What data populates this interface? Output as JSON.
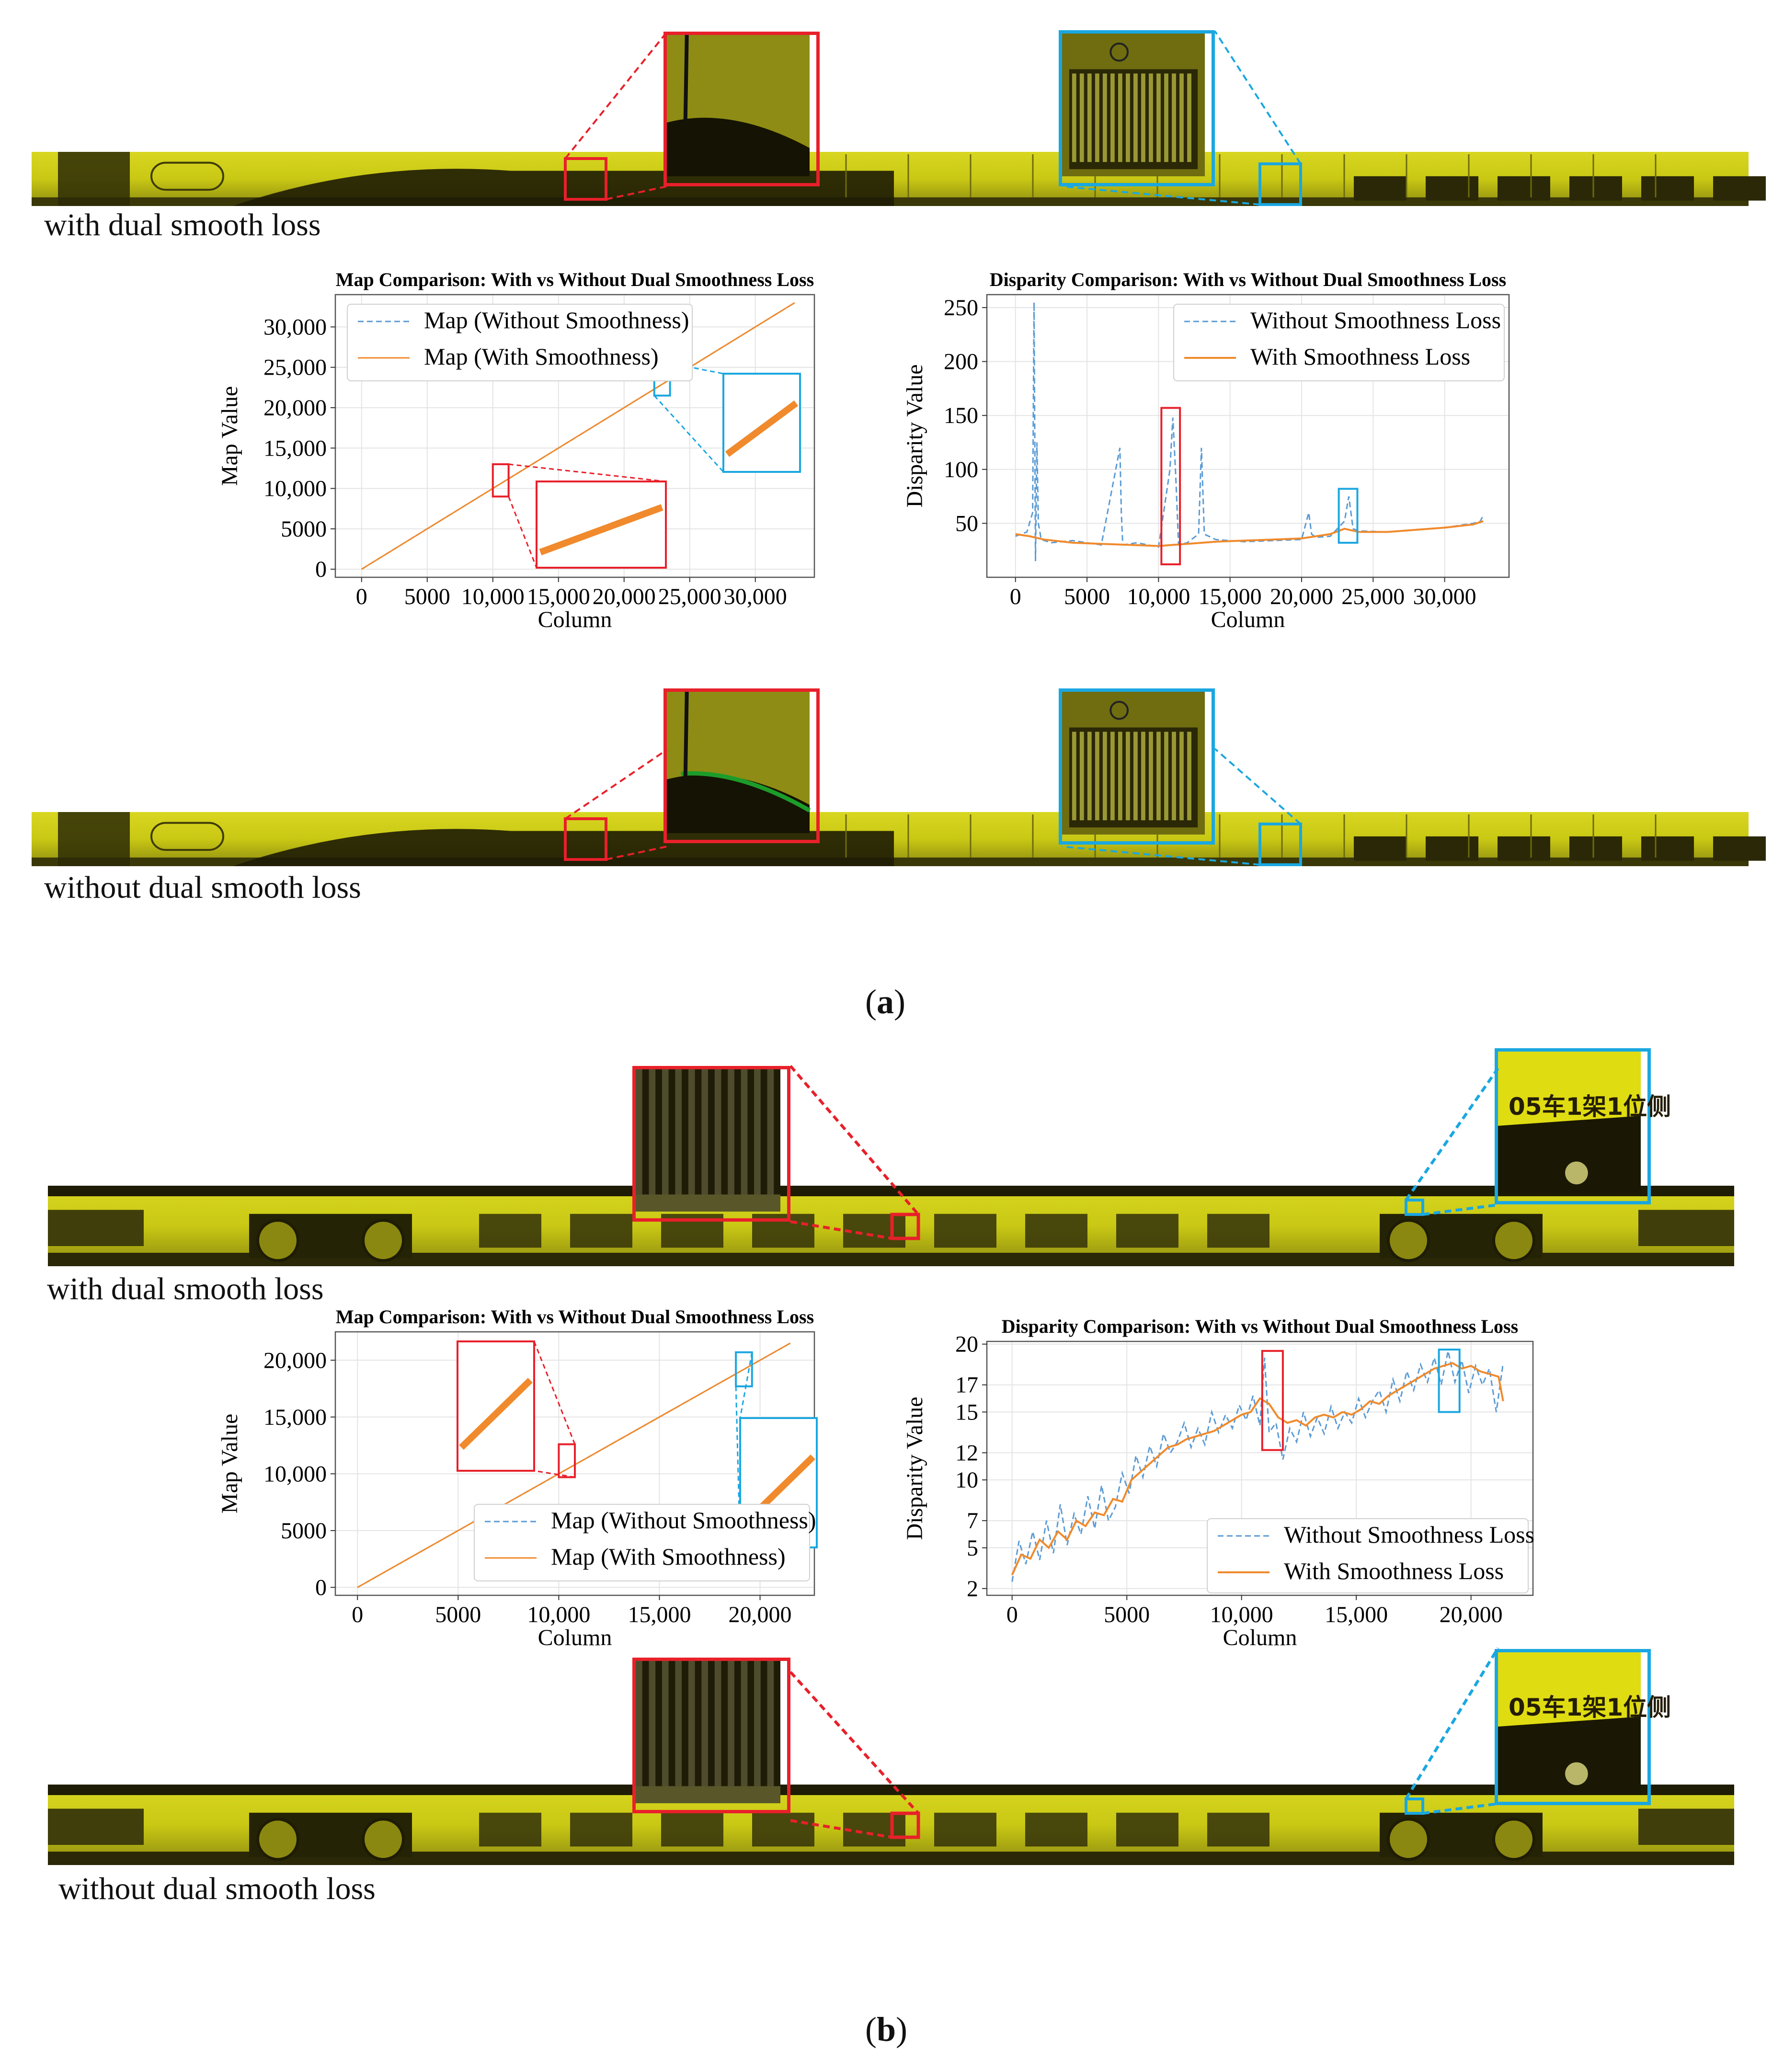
{
  "colors": {
    "red": "#e8202a",
    "cyan": "#1aa7e0",
    "blue_series": "#5b9bd5",
    "orange_series": "#f08a2c",
    "train_yellow": "#c9c814",
    "train_dark": "#2c2a06"
  },
  "panels": [
    {
      "label": "a",
      "caption_top": "with dual smooth loss",
      "caption_bottom": "without dual smooth loss"
    },
    {
      "label": "b",
      "caption_top": "with dual smooth loss",
      "caption_bottom": "without dual smooth loss"
    }
  ],
  "inset_text": "05车1架1位侧",
  "chart_data": [
    {
      "id": "a-map",
      "type": "line",
      "title": "Map Comparison: With vs Without Dual Smoothness Loss",
      "xlabel": "Column",
      "ylabel": "Map Value",
      "xlim": [
        -2000,
        34500
      ],
      "ylim": [
        -1000,
        34000
      ],
      "xticks": [
        0,
        5000,
        10000,
        15000,
        20000,
        25000,
        30000
      ],
      "xtick_labels": [
        "0",
        "5000",
        "10,000",
        "15,000",
        "20,000",
        "25,000",
        "30,000"
      ],
      "yticks": [
        0,
        5000,
        10000,
        15000,
        20000,
        25000,
        30000
      ],
      "ytick_labels": [
        "0",
        "5000",
        "10,000",
        "15,000",
        "20,000",
        "25,000",
        "30,000"
      ],
      "grid": true,
      "legend": "top-left",
      "series": [
        {
          "name": "Map (Without Smoothness)",
          "style": "dashed",
          "color": "#5b9bd5",
          "x": [
            0,
            33000
          ],
          "y": [
            0,
            33000
          ]
        },
        {
          "name": "Map (With Smoothness)",
          "style": "solid",
          "color": "#f08a2c",
          "x": [
            0,
            33000
          ],
          "y": [
            0,
            33000
          ]
        }
      ],
      "zoom_boxes": [
        {
          "color": "red",
          "x": [
            10000,
            11200
          ],
          "y": [
            9000,
            13000
          ]
        },
        {
          "color": "cyan",
          "x": [
            22300,
            23500
          ],
          "y": [
            21500,
            25500
          ]
        }
      ]
    },
    {
      "id": "a-disparity",
      "type": "line",
      "title": "Disparity Comparison: With vs Without Dual Smoothness Loss",
      "xlabel": "Column",
      "ylabel": "Disparity Value",
      "xlim": [
        -2000,
        34500
      ],
      "ylim": [
        0,
        262
      ],
      "xticks": [
        0,
        5000,
        10000,
        15000,
        20000,
        25000,
        30000
      ],
      "xtick_labels": [
        "0",
        "5000",
        "10,000",
        "15,000",
        "20,000",
        "25,000",
        "30,000"
      ],
      "yticks": [
        50,
        100,
        150,
        200,
        250
      ],
      "ytick_labels": [
        "50",
        "100",
        "150",
        "200",
        "250"
      ],
      "grid": true,
      "legend": "top-right",
      "series": [
        {
          "name": "Without Smoothness Loss",
          "style": "dashed",
          "color": "#5b9bd5",
          "x": [
            0,
            800,
            1200,
            1300,
            1400,
            1500,
            1600,
            1800,
            2500,
            4000,
            6000,
            7300,
            7400,
            7500,
            8500,
            10000,
            10800,
            11000,
            11200,
            11400,
            12000,
            12800,
            13000,
            13200,
            14000,
            16000,
            18000,
            20000,
            20500,
            20700,
            21000,
            22000,
            23000,
            23300,
            23600,
            24000,
            26000,
            28000,
            30000,
            32000,
            32500,
            32700
          ],
          "y": [
            38,
            42,
            60,
            255,
            15,
            125,
            50,
            35,
            32,
            34,
            30,
            120,
            60,
            30,
            32,
            28,
            100,
            148,
            95,
            30,
            32,
            40,
            120,
            40,
            35,
            33,
            34,
            35,
            60,
            40,
            37,
            38,
            52,
            75,
            45,
            43,
            42,
            44,
            46,
            50,
            52,
            58
          ]
        },
        {
          "name": "With Smoothness Loss",
          "style": "solid",
          "color": "#f08a2c",
          "x": [
            0,
            1000,
            2000,
            4000,
            6000,
            8000,
            10000,
            11000,
            12000,
            14000,
            16000,
            18000,
            20000,
            21000,
            22000,
            23000,
            24000,
            26000,
            28000,
            30000,
            32000,
            32700
          ],
          "y": [
            40,
            38,
            35,
            32,
            31,
            30,
            29,
            30,
            31,
            33,
            34,
            35,
            36,
            38,
            40,
            45,
            42,
            42,
            44,
            46,
            49,
            52
          ]
        }
      ],
      "zoom_boxes": [
        {
          "color": "red",
          "x": [
            10200,
            11500
          ],
          "y": [
            12,
            157
          ]
        },
        {
          "color": "cyan",
          "x": [
            22600,
            23900
          ],
          "y": [
            32,
            82
          ]
        }
      ]
    },
    {
      "id": "b-map",
      "type": "line",
      "title": "Map Comparison: With vs Without Dual Smoothness Loss",
      "xlabel": "Column",
      "ylabel": "Map Value",
      "xlim": [
        -1100,
        22700
      ],
      "ylim": [
        -700,
        22500
      ],
      "xticks": [
        0,
        5000,
        10000,
        15000,
        20000
      ],
      "xtick_labels": [
        "0",
        "5000",
        "10,000",
        "15,000",
        "20,000"
      ],
      "yticks": [
        0,
        5000,
        10000,
        15000,
        20000
      ],
      "ytick_labels": [
        "0",
        "5000",
        "10,000",
        "15,000",
        "20,000"
      ],
      "grid": true,
      "legend": "bottom-right",
      "series": [
        {
          "name": "Map (Without Smoothness)",
          "style": "dashed",
          "color": "#5b9bd5",
          "x": [
            0,
            21500
          ],
          "y": [
            0,
            21500
          ]
        },
        {
          "name": "Map (With Smoothness)",
          "style": "solid",
          "color": "#f08a2c",
          "x": [
            0,
            21500
          ],
          "y": [
            0,
            21500
          ]
        }
      ],
      "zoom_boxes": [
        {
          "color": "red",
          "x": [
            10000,
            10800
          ],
          "y": [
            9700,
            12600
          ]
        },
        {
          "color": "cyan",
          "x": [
            18800,
            19600
          ],
          "y": [
            17700,
            20700
          ]
        }
      ]
    },
    {
      "id": "b-disparity",
      "type": "line",
      "title": "Disparity Comparison: With vs Without Dual Smoothness Loss",
      "xlabel": "Column",
      "ylabel": "Disparity Value",
      "xlim": [
        -1100,
        22700
      ],
      "ylim": [
        1.5,
        20.2
      ],
      "xticks": [
        0,
        5000,
        10000,
        15000,
        20000
      ],
      "xtick_labels": [
        "0",
        "5000",
        "10,000",
        "15,000",
        "20,000"
      ],
      "yticks": [
        2,
        5,
        7,
        10,
        12,
        15,
        17,
        20
      ],
      "ytick_labels": [
        "2",
        "5",
        "7",
        "10",
        "12",
        "15",
        "17",
        "20"
      ],
      "grid": true,
      "legend": "bottom-right",
      "series": [
        {
          "name": "Without Smoothness Loss",
          "style": "dashed",
          "color": "#5b9bd5",
          "x": [
            0,
            300,
            600,
            900,
            1200,
            1500,
            1800,
            2100,
            2400,
            2700,
            3000,
            3300,
            3600,
            3900,
            4200,
            4500,
            4800,
            5100,
            5400,
            5700,
            6000,
            6300,
            6600,
            6900,
            7200,
            7500,
            7800,
            8100,
            8400,
            8700,
            9000,
            9300,
            9600,
            9900,
            10200,
            10500,
            10800,
            11000,
            11200,
            11500,
            11800,
            12100,
            12400,
            12700,
            13000,
            13300,
            13600,
            13900,
            14200,
            14500,
            14800,
            15100,
            15400,
            15700,
            16000,
            16300,
            16600,
            16900,
            17200,
            17500,
            17800,
            18100,
            18400,
            18700,
            19000,
            19300,
            19600,
            19900,
            20200,
            20500,
            20800,
            21100,
            21400
          ],
          "y": [
            2.5,
            5.5,
            3.8,
            6.2,
            4.1,
            7.0,
            4.6,
            8.2,
            5.2,
            7.5,
            6.0,
            8.8,
            6.4,
            9.6,
            7.0,
            8.0,
            10.5,
            9.0,
            11.8,
            10.2,
            12.5,
            11.0,
            13.4,
            12.0,
            12.8,
            14.2,
            12.4,
            13.8,
            12.6,
            15.0,
            13.5,
            14.8,
            13.8,
            15.5,
            14.4,
            16.2,
            14.0,
            19.0,
            13.5,
            14.2,
            11.5,
            13.8,
            12.8,
            15.0,
            13.2,
            14.6,
            13.4,
            15.4,
            13.8,
            15.0,
            14.2,
            16.0,
            14.6,
            15.8,
            16.6,
            15.0,
            17.4,
            15.8,
            18.0,
            16.6,
            18.5,
            17.2,
            19.0,
            17.0,
            19.5,
            17.2,
            18.8,
            16.4,
            18.4,
            17.0,
            18.2,
            15.0,
            18.6
          ]
        },
        {
          "name": "With Smoothness Loss",
          "style": "solid",
          "color": "#f08a2c",
          "x": [
            0,
            400,
            800,
            1200,
            1600,
            2000,
            2400,
            2800,
            3200,
            3600,
            4000,
            4400,
            4800,
            5200,
            5600,
            6000,
            6400,
            6800,
            7200,
            7600,
            8000,
            8400,
            8800,
            9200,
            9600,
            10000,
            10400,
            10800,
            11200,
            11600,
            12000,
            12400,
            12800,
            13200,
            13600,
            14000,
            14400,
            14800,
            15200,
            15600,
            16000,
            16400,
            16800,
            17200,
            17600,
            18000,
            18400,
            18800,
            19200,
            19600,
            20000,
            20400,
            20800,
            21200,
            21400
          ],
          "y": [
            3.0,
            4.5,
            4.2,
            5.6,
            5.0,
            6.2,
            5.6,
            7.0,
            6.6,
            7.6,
            7.4,
            8.6,
            8.4,
            10.0,
            10.6,
            11.2,
            11.8,
            12.4,
            12.6,
            13.0,
            13.2,
            13.4,
            13.6,
            14.0,
            14.4,
            14.8,
            15.0,
            16.0,
            15.6,
            14.6,
            14.2,
            14.4,
            14.0,
            14.6,
            14.8,
            14.6,
            15.0,
            14.8,
            15.2,
            15.8,
            15.6,
            16.2,
            16.6,
            17.0,
            17.4,
            17.8,
            18.2,
            18.4,
            18.6,
            18.2,
            18.4,
            18.0,
            17.8,
            17.6,
            15.8
          ]
        }
      ],
      "zoom_boxes": [
        {
          "color": "red",
          "x": [
            10900,
            11800
          ],
          "y": [
            12.2,
            19.5
          ]
        },
        {
          "color": "cyan",
          "x": [
            18600,
            19500
          ],
          "y": [
            15.0,
            19.6
          ]
        }
      ]
    }
  ]
}
